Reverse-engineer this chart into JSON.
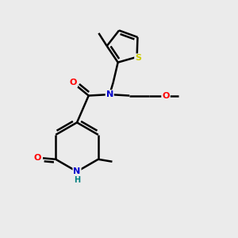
{
  "bg_color": "#ebebeb",
  "atom_colors": {
    "C": "#000000",
    "N": "#0000cc",
    "O": "#ff0000",
    "S": "#cccc00",
    "H": "#008080"
  },
  "bond_color": "#000000",
  "bond_width": 1.8
}
